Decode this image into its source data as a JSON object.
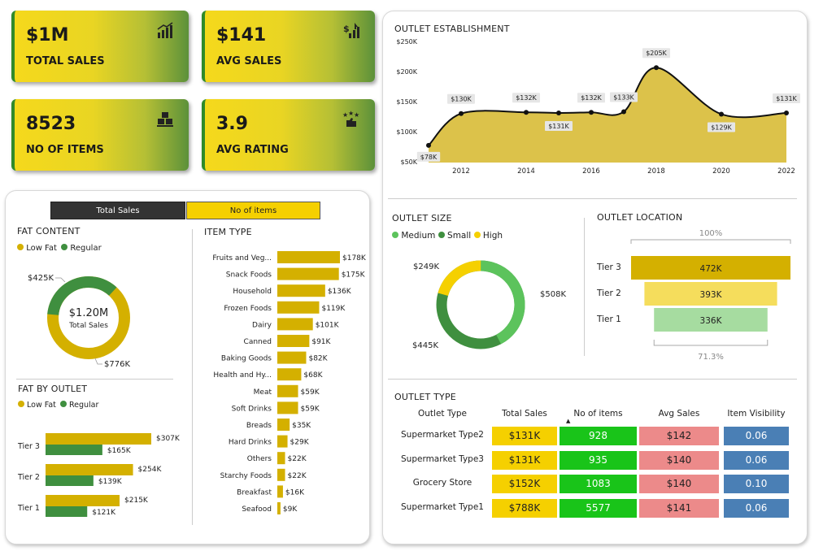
{
  "kpis": [
    {
      "value": "$1M",
      "label": "TOTAL SALES",
      "icon": "bar-chart-up-icon"
    },
    {
      "value": "$141",
      "label": "AVG SALES",
      "icon": "dollar-growth-icon"
    },
    {
      "value": "8523",
      "label": "NO OF ITEMS",
      "icon": "boxes-icon"
    },
    {
      "value": "3.9",
      "label": "AVG RATING",
      "icon": "thumbs-stars-icon"
    }
  ],
  "toggle": {
    "total_sales": "Total Sales",
    "no_of_items": "No of items"
  },
  "fat_content": {
    "title": "FAT CONTENT",
    "legend": [
      "Low Fat",
      "Regular"
    ],
    "center_value": "$1.20M",
    "center_label": "Total Sales",
    "labels": {
      "regular": "$425K",
      "low_fat": "$776K"
    },
    "colors": {
      "low_fat": "#d4b000",
      "regular": "#3f8f3f"
    }
  },
  "fat_by_outlet": {
    "title": "FAT BY OUTLET",
    "legend": [
      "Low Fat",
      "Regular"
    ],
    "rows": [
      {
        "tier": "Tier 3",
        "low": "$307K",
        "reg": "$165K"
      },
      {
        "tier": "Tier 2",
        "low": "$254K",
        "reg": "$139K"
      },
      {
        "tier": "Tier 1",
        "low": "$215K",
        "reg": "$121K"
      }
    ]
  },
  "item_type": {
    "title": "ITEM TYPE",
    "rows": [
      {
        "name": "Fruits and Veg...",
        "label": "$178K"
      },
      {
        "name": "Snack Foods",
        "label": "$175K"
      },
      {
        "name": "Household",
        "label": "$136K"
      },
      {
        "name": "Frozen Foods",
        "label": "$119K"
      },
      {
        "name": "Dairy",
        "label": "$101K"
      },
      {
        "name": "Canned",
        "label": "$91K"
      },
      {
        "name": "Baking Goods",
        "label": "$82K"
      },
      {
        "name": "Health and Hy...",
        "label": "$68K"
      },
      {
        "name": "Meat",
        "label": "$59K"
      },
      {
        "name": "Soft Drinks",
        "label": "$59K"
      },
      {
        "name": "Breads",
        "label": "$35K"
      },
      {
        "name": "Hard Drinks",
        "label": "$29K"
      },
      {
        "name": "Others",
        "label": "$22K"
      },
      {
        "name": "Starchy Foods",
        "label": "$22K"
      },
      {
        "name": "Breakfast",
        "label": "$16K"
      },
      {
        "name": "Seafood",
        "label": "$9K"
      }
    ]
  },
  "outlet_establishment": {
    "title": "OUTLET ESTABLISHMENT",
    "y_ticks": [
      "$250K",
      "$200K",
      "$150K",
      "$100K",
      "$50K"
    ],
    "x_ticks": [
      "2012",
      "2014",
      "2016",
      "2018",
      "2020",
      "2022"
    ],
    "points": [
      "$78K",
      "$130K",
      "$132K",
      "$131K",
      "$132K",
      "$133K",
      "$205K",
      "$129K",
      "$131K"
    ]
  },
  "outlet_size": {
    "title": "OUTLET SIZE",
    "legend": [
      "Medium",
      "Small",
      "High"
    ],
    "labels": {
      "medium": "$508K",
      "small": "$445K",
      "high": "$249K"
    },
    "colors": {
      "medium": "#5cc35c",
      "small": "#3f8f3f",
      "high": "#f5d000"
    }
  },
  "outlet_location": {
    "title": "OUTLET LOCATION",
    "top_pct": "100%",
    "bottom_pct": "71.3%",
    "rows": [
      {
        "tier": "Tier 3",
        "value": "472K"
      },
      {
        "tier": "Tier 2",
        "value": "393K"
      },
      {
        "tier": "Tier 1",
        "value": "336K"
      }
    ]
  },
  "outlet_type": {
    "title": "OUTLET TYPE",
    "headers": [
      "Outlet Type",
      "Total Sales",
      "No of items",
      "Avg Sales",
      "Item Visibility"
    ],
    "rows": [
      {
        "type": "Supermarket Type2",
        "sales": "$131K",
        "items": "928",
        "avg": "$142",
        "vis": "0.06"
      },
      {
        "type": "Supermarket Type3",
        "sales": "$131K",
        "items": "935",
        "avg": "$140",
        "vis": "0.06"
      },
      {
        "type": "Grocery Store",
        "sales": "$152K",
        "items": "1083",
        "avg": "$140",
        "vis": "0.10"
      },
      {
        "type": "Supermarket Type1",
        "sales": "$788K",
        "items": "5577",
        "avg": "$141",
        "vis": "0.06"
      }
    ]
  },
  "chart_data": [
    {
      "type": "pie",
      "categories": [
        "Low Fat",
        "Regular"
      ],
      "values": [
        776,
        425
      ],
      "title": "FAT CONTENT"
    },
    {
      "type": "bar",
      "title": "FAT BY OUTLET",
      "categories": [
        "Tier 3",
        "Tier 2",
        "Tier 1"
      ],
      "series": [
        {
          "name": "Low Fat",
          "values": [
            307,
            254,
            215
          ]
        },
        {
          "name": "Regular",
          "values": [
            165,
            139,
            121
          ]
        }
      ]
    },
    {
      "type": "bar",
      "title": "ITEM TYPE",
      "categories": [
        "Fruits and Veg...",
        "Snack Foods",
        "Household",
        "Frozen Foods",
        "Dairy",
        "Canned",
        "Baking Goods",
        "Health and Hy...",
        "Meat",
        "Soft Drinks",
        "Breads",
        "Hard Drinks",
        "Others",
        "Starchy Foods",
        "Breakfast",
        "Seafood"
      ],
      "values": [
        178,
        175,
        136,
        119,
        101,
        91,
        82,
        68,
        59,
        59,
        35,
        29,
        22,
        22,
        16,
        9
      ]
    },
    {
      "type": "area",
      "title": "OUTLET ESTABLISHMENT",
      "x": [
        2011,
        2012,
        2014,
        2015,
        2016,
        2017,
        2018,
        2020,
        2022
      ],
      "values": [
        78,
        130,
        132,
        131,
        132,
        133,
        205,
        129,
        131
      ],
      "ylim": [
        50,
        250
      ]
    },
    {
      "type": "pie",
      "title": "OUTLET SIZE",
      "categories": [
        "Medium",
        "Small",
        "High"
      ],
      "values": [
        508,
        445,
        249
      ]
    },
    {
      "type": "bar",
      "title": "OUTLET LOCATION",
      "categories": [
        "Tier 3",
        "Tier 2",
        "Tier 1"
      ],
      "values": [
        472,
        393,
        336
      ]
    }
  ]
}
